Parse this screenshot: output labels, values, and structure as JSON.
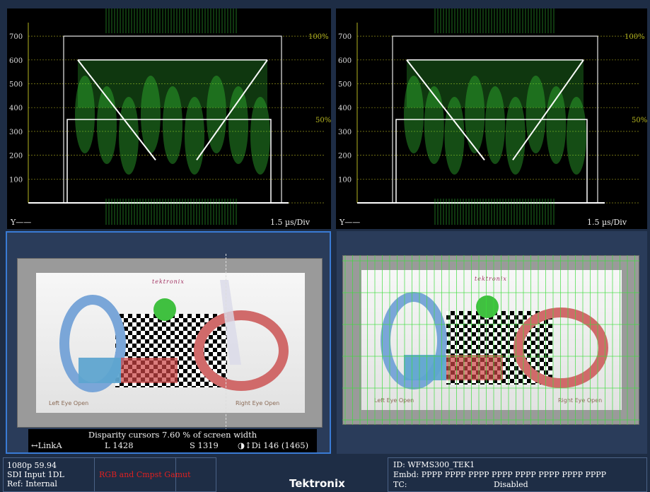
{
  "waveforms": [
    {
      "y_label": "Y——",
      "time_div": "1.5 µs/Div",
      "ticks": [
        "700",
        "600",
        "500",
        "400",
        "300",
        "200",
        "100"
      ],
      "pct_top": "100%",
      "pct_mid": "50%"
    },
    {
      "y_label": "Y——",
      "time_div": "1.5 µs/Div",
      "ticks": [
        "700",
        "600",
        "500",
        "400",
        "300",
        "200",
        "100"
      ],
      "pct_top": "100%",
      "pct_mid": "50%"
    }
  ],
  "pictures": {
    "left": {
      "logo": "tektronix",
      "left_eye": "Left Eye Open",
      "right_eye": "Right Eye Open"
    },
    "right": {
      "logo": "tektronix",
      "left_eye": "Left Eye Open",
      "right_eye": "Right Eye Open"
    }
  },
  "cursor_info": {
    "line1": "Disparity cursors 7.60 % of screen width",
    "link": "↔LinkA",
    "l_value": "L 1428",
    "s_value": "S 1319",
    "di_value": "◑↕Di 146 (1465)"
  },
  "status": {
    "format": "1080p 59.94",
    "input": "SDI Input 1DL",
    "ref": "Ref: Internal",
    "gamut": "RGB and Cmpst Gamut",
    "brand": "Tektronix",
    "id": "ID: WFMS300_TEK1",
    "embd": "Embd: PPPP PPPP PPPP PPPP PPPP PPPP PPPP PPPP",
    "tc_label": "TC:",
    "tc_value": "Disabled"
  },
  "colors": {
    "trace": "#3ddc3d",
    "grid": "#b5b521",
    "selected_border": "#3a7bd5",
    "gamut_alarm": "#e02020"
  }
}
